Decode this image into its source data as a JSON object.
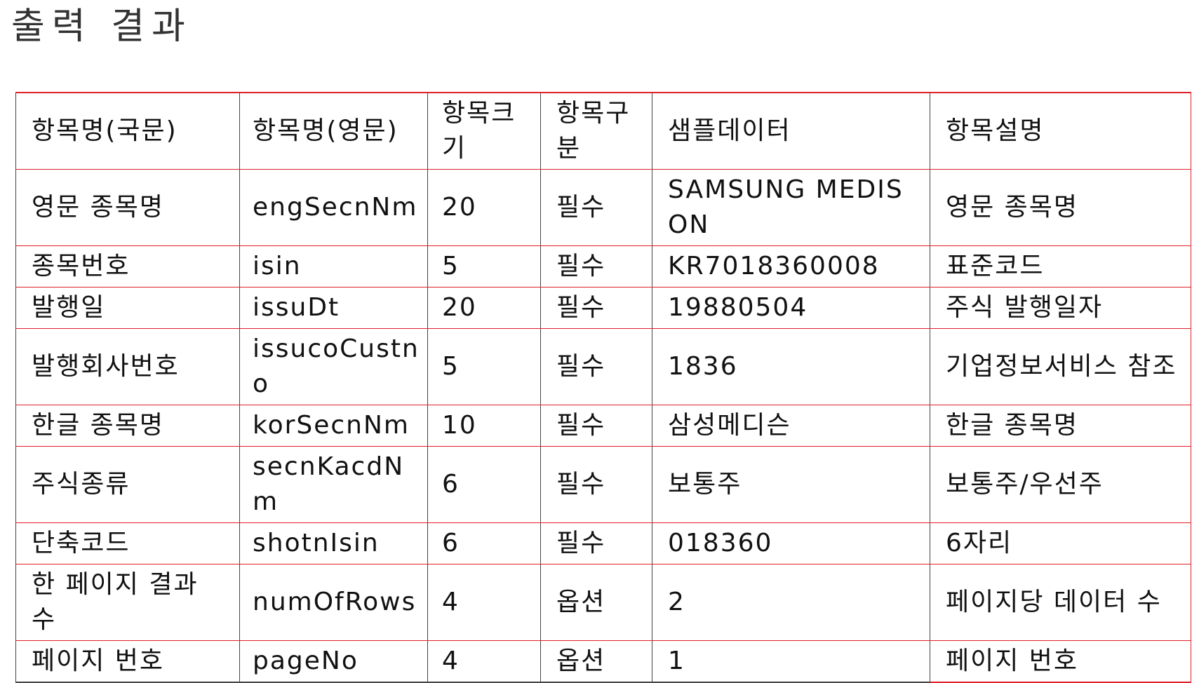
{
  "page": {
    "title": "출력 결과"
  },
  "table": {
    "headers": [
      "항목명(국문)",
      "항목명(영문)",
      "항목크기",
      "항목구분",
      "샘플데이터",
      "항목설명"
    ],
    "rows": [
      [
        "영문 종목명",
        "engSecnNm",
        "20",
        "필수",
        "SAMSUNG MEDISON",
        "영문 종목명"
      ],
      [
        "종목번호",
        "isin",
        "5",
        "필수",
        "KR7018360008",
        "표준코드"
      ],
      [
        "발행일",
        "issuDt",
        "20",
        "필수",
        "19880504",
        "주식 발행일자"
      ],
      [
        "발행회사번호",
        "issucoCustno",
        "5",
        "필수",
        "1836",
        "기업정보서비스 참조"
      ],
      [
        "한글 종목명",
        "korSecnNm",
        "10",
        "필수",
        "삼성메디슨",
        "한글 종목명"
      ],
      [
        "주식종류",
        "secnKacdNm",
        "6",
        "필수",
        "보통주",
        "보통주/우선주"
      ],
      [
        "단축코드",
        "shotnIsin",
        "6",
        "필수",
        "018360",
        "6자리"
      ],
      [
        "한 페이지 결과 수",
        "numOfRows",
        "4",
        "옵션",
        "2",
        "페이지당 데이터 수"
      ],
      [
        "페이지 번호",
        "pageNo",
        "4",
        "옵션",
        "1",
        "페이지 번호"
      ]
    ]
  }
}
